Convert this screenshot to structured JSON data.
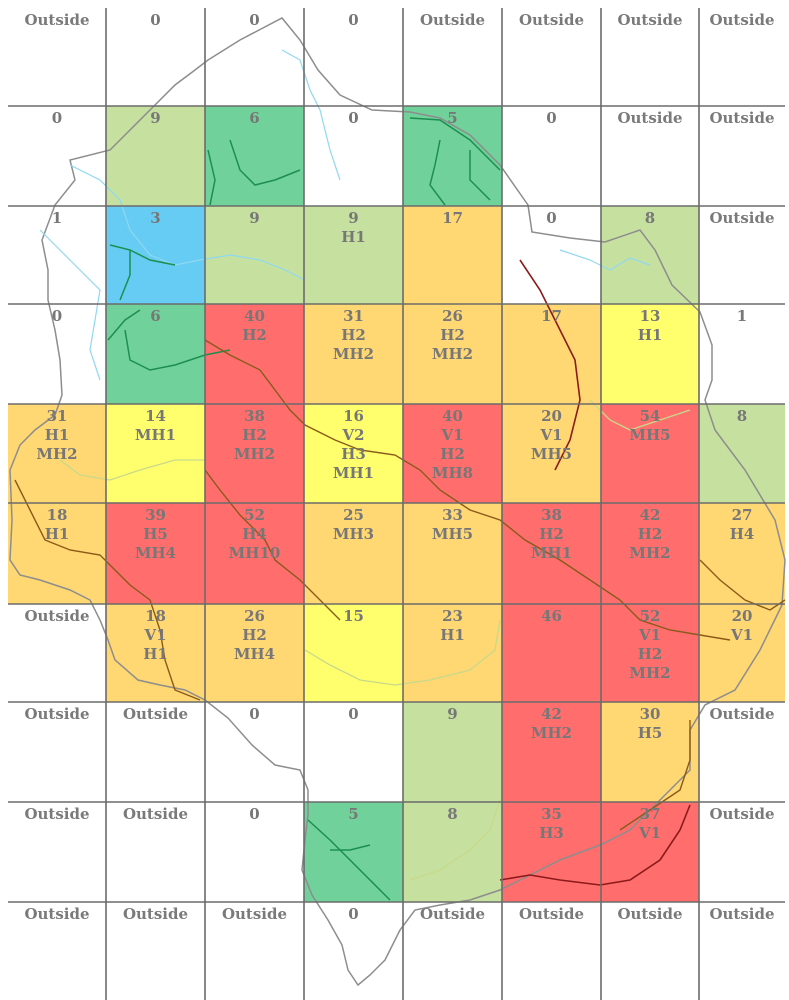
{
  "legend_colors": {
    "none": "#ffffff",
    "light_green": "#c3df9a",
    "green": "#68cf95",
    "blue": "#5ec9f2",
    "yellow": "#ffff66",
    "orange": "#ffd56b",
    "red": "#ff6565"
  },
  "grid": {
    "rows": 10,
    "cols": 8,
    "cells": [
      [
        {
          "lines": [
            "Outside"
          ],
          "color": "none"
        },
        {
          "lines": [
            "0"
          ],
          "color": "none"
        },
        {
          "lines": [
            "0"
          ],
          "color": "none"
        },
        {
          "lines": [
            "0"
          ],
          "color": "none"
        },
        {
          "lines": [
            "Outside"
          ],
          "color": "none"
        },
        {
          "lines": [
            "Outside"
          ],
          "color": "none"
        },
        {
          "lines": [
            "Outside"
          ],
          "color": "none"
        },
        {
          "lines": [
            "Outside"
          ],
          "color": "none"
        }
      ],
      [
        {
          "lines": [
            "0"
          ],
          "color": "none"
        },
        {
          "lines": [
            "9"
          ],
          "color": "light_green"
        },
        {
          "lines": [
            "6"
          ],
          "color": "green"
        },
        {
          "lines": [
            "0"
          ],
          "color": "none"
        },
        {
          "lines": [
            "5"
          ],
          "color": "green"
        },
        {
          "lines": [
            "0"
          ],
          "color": "none"
        },
        {
          "lines": [
            "Outside"
          ],
          "color": "none"
        },
        {
          "lines": [
            "Outside"
          ],
          "color": "none"
        }
      ],
      [
        {
          "lines": [
            "1"
          ],
          "color": "none"
        },
        {
          "lines": [
            "3"
          ],
          "color": "blue"
        },
        {
          "lines": [
            "9"
          ],
          "color": "light_green"
        },
        {
          "lines": [
            "9",
            "H1"
          ],
          "color": "light_green"
        },
        {
          "lines": [
            "17"
          ],
          "color": "orange"
        },
        {
          "lines": [
            "0"
          ],
          "color": "none"
        },
        {
          "lines": [
            "8"
          ],
          "color": "light_green"
        },
        {
          "lines": [
            "Outside"
          ],
          "color": "none"
        }
      ],
      [
        {
          "lines": [
            "0"
          ],
          "color": "none"
        },
        {
          "lines": [
            "6"
          ],
          "color": "green"
        },
        {
          "lines": [
            "40",
            "H2"
          ],
          "color": "red"
        },
        {
          "lines": [
            "31",
            "H2",
            "MH2"
          ],
          "color": "orange"
        },
        {
          "lines": [
            "26",
            "H2",
            "MH2"
          ],
          "color": "orange"
        },
        {
          "lines": [
            "17"
          ],
          "color": "orange"
        },
        {
          "lines": [
            "13",
            "H1"
          ],
          "color": "yellow"
        },
        {
          "lines": [
            "1"
          ],
          "color": "none"
        }
      ],
      [
        {
          "lines": [
            "31",
            "H1",
            "MH2"
          ],
          "color": "orange"
        },
        {
          "lines": [
            "14",
            "MH1"
          ],
          "color": "yellow"
        },
        {
          "lines": [
            "38",
            "H2",
            "MH2"
          ],
          "color": "red"
        },
        {
          "lines": [
            "16",
            "V2",
            "H3",
            "MH1"
          ],
          "color": "yellow"
        },
        {
          "lines": [
            "40",
            "V1",
            "H2",
            "MH8"
          ],
          "color": "red"
        },
        {
          "lines": [
            "20",
            "V1",
            "MH5"
          ],
          "color": "orange"
        },
        {
          "lines": [
            "54",
            "MH5"
          ],
          "color": "red"
        },
        {
          "lines": [
            "8"
          ],
          "color": "light_green"
        }
      ],
      [
        {
          "lines": [
            "18",
            "H1"
          ],
          "color": "orange"
        },
        {
          "lines": [
            "39",
            "H5",
            "MH4"
          ],
          "color": "red"
        },
        {
          "lines": [
            "52",
            "H4",
            "MH10"
          ],
          "color": "red"
        },
        {
          "lines": [
            "25",
            "MH3"
          ],
          "color": "orange"
        },
        {
          "lines": [
            "33",
            "MH5"
          ],
          "color": "orange"
        },
        {
          "lines": [
            "38",
            "H2",
            "MH1"
          ],
          "color": "red"
        },
        {
          "lines": [
            "42",
            "H2",
            "MH2"
          ],
          "color": "red"
        },
        {
          "lines": [
            "27",
            "H4"
          ],
          "color": "orange"
        }
      ],
      [
        {
          "lines": [
            "Outside"
          ],
          "color": "none"
        },
        {
          "lines": [
            "18",
            "V1",
            "H1"
          ],
          "color": "orange"
        },
        {
          "lines": [
            "26",
            "H2",
            "MH4"
          ],
          "color": "orange"
        },
        {
          "lines": [
            "15"
          ],
          "color": "yellow"
        },
        {
          "lines": [
            "23",
            "H1"
          ],
          "color": "orange"
        },
        {
          "lines": [
            "46"
          ],
          "color": "red"
        },
        {
          "lines": [
            "52",
            "V1",
            "H2",
            "MH2"
          ],
          "color": "red"
        },
        {
          "lines": [
            "20",
            "V1"
          ],
          "color": "orange"
        }
      ],
      [
        {
          "lines": [
            "Outside"
          ],
          "color": "none"
        },
        {
          "lines": [
            "Outside"
          ],
          "color": "none"
        },
        {
          "lines": [
            "0"
          ],
          "color": "none"
        },
        {
          "lines": [
            "0"
          ],
          "color": "none"
        },
        {
          "lines": [
            "9"
          ],
          "color": "light_green"
        },
        {
          "lines": [
            "42",
            "MH2"
          ],
          "color": "red"
        },
        {
          "lines": [
            "30",
            "H5"
          ],
          "color": "orange"
        },
        {
          "lines": [
            "Outside"
          ],
          "color": "none"
        }
      ],
      [
        {
          "lines": [
            "Outside"
          ],
          "color": "none"
        },
        {
          "lines": [
            "Outside"
          ],
          "color": "none"
        },
        {
          "lines": [
            "0"
          ],
          "color": "none"
        },
        {
          "lines": [
            "5"
          ],
          "color": "green"
        },
        {
          "lines": [
            "8"
          ],
          "color": "light_green"
        },
        {
          "lines": [
            "35",
            "H3"
          ],
          "color": "red"
        },
        {
          "lines": [
            "37",
            "V1"
          ],
          "color": "red"
        },
        {
          "lines": [
            "Outside"
          ],
          "color": "none"
        }
      ],
      [
        {
          "lines": [
            "Outside"
          ],
          "color": "none"
        },
        {
          "lines": [
            "Outside"
          ],
          "color": "none"
        },
        {
          "lines": [
            "Outside"
          ],
          "color": "none"
        },
        {
          "lines": [
            "0"
          ],
          "color": "none"
        },
        {
          "lines": [
            "Outside"
          ],
          "color": "none"
        },
        {
          "lines": [
            "Outside"
          ],
          "color": "none"
        },
        {
          "lines": [
            "Outside"
          ],
          "color": "none"
        },
        {
          "lines": [
            "Outside"
          ],
          "color": "none"
        }
      ]
    ]
  }
}
